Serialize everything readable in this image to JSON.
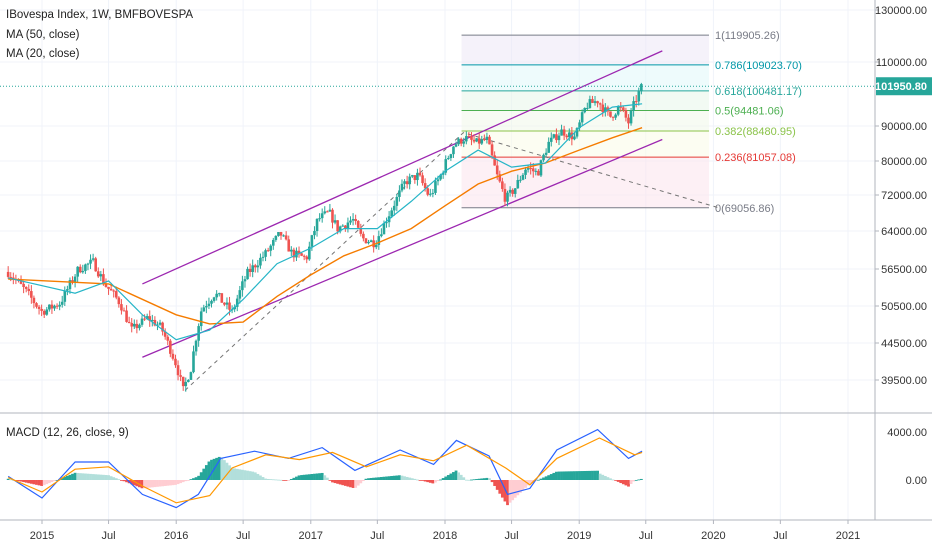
{
  "header": {
    "title": "IBovespa Index, 1W, BMFBOVESPA",
    "ma50": "MA (50, close)",
    "ma20": "MA (20, close)"
  },
  "macd_label": "MACD (12, 26, close, 9)",
  "colors": {
    "up": "#26a69a",
    "down": "#ef5350",
    "ma50": "#f57c00",
    "ma20": "#26b5c7",
    "macd_line": "#2962ff",
    "signal_line": "#ff9800",
    "hist_up_strong": "#26a69a",
    "hist_up_weak": "#b2dfdb",
    "hist_down_strong": "#ef5350",
    "hist_down_weak": "#ffcdd2",
    "channel": "#9c27b0",
    "diagonal": "#757575",
    "last_price": "#26a69a"
  },
  "last_price_badge": "101950.80",
  "chart_data": {
    "type": "candlestick",
    "title": "IBovespa Index, 1W, BMFBOVESPA",
    "ylim": [
      35500,
      133000
    ],
    "y_ticks": [
      "130000.00",
      "110000.00",
      "90000.00",
      "80000.00",
      "72000.00",
      "64000.00",
      "56500.00",
      "50500.00",
      "44500.00",
      "39500.00"
    ],
    "macd_ticks": [
      "4000.00",
      "0.00"
    ],
    "x_ticks": [
      "2015",
      "Jul",
      "2016",
      "Jul",
      "2017",
      "Jul",
      "2018",
      "Jul",
      "2019",
      "Jul",
      "2020",
      "Jul",
      "2021"
    ],
    "price_path": [
      [
        "2014-10-01",
        56000
      ],
      [
        "2014-11-15",
        53000
      ],
      [
        "2015-01-01",
        49500
      ],
      [
        "2015-02-20",
        51000
      ],
      [
        "2015-04-10",
        56500
      ],
      [
        "2015-05-20",
        57800
      ],
      [
        "2015-06-20",
        54000
      ],
      [
        "2015-08-01",
        51000
      ],
      [
        "2015-09-01",
        46500
      ],
      [
        "2015-10-15",
        48500
      ],
      [
        "2015-11-20",
        47000
      ],
      [
        "2016-01-01",
        41500
      ],
      [
        "2016-01-20",
        38200
      ],
      [
        "2016-02-10",
        41000
      ],
      [
        "2016-03-10",
        50000
      ],
      [
        "2016-04-15",
        52500
      ],
      [
        "2016-06-01",
        49500
      ],
      [
        "2016-07-10",
        55500
      ],
      [
        "2016-09-01",
        59500
      ],
      [
        "2016-10-10",
        63500
      ],
      [
        "2016-11-10",
        59500
      ],
      [
        "2016-12-20",
        58500
      ],
      [
        "2017-01-20",
        66500
      ],
      [
        "2017-02-20",
        68000
      ],
      [
        "2017-03-15",
        64500
      ],
      [
        "2017-04-25",
        66500
      ],
      [
        "2017-05-20",
        62500
      ],
      [
        "2017-06-25",
        61500
      ],
      [
        "2017-08-01",
        67500
      ],
      [
        "2017-09-15",
        75000
      ],
      [
        "2017-10-20",
        76500
      ],
      [
        "2017-11-20",
        71500
      ],
      [
        "2017-12-20",
        76500
      ],
      [
        "2018-01-25",
        84500
      ],
      [
        "2018-02-25",
        86500
      ],
      [
        "2018-03-25",
        85000
      ],
      [
        "2018-04-25",
        86000
      ],
      [
        "2018-05-20",
        77000
      ],
      [
        "2018-06-15",
        71000
      ],
      [
        "2018-07-10",
        73500
      ],
      [
        "2018-08-10",
        78500
      ],
      [
        "2018-09-10",
        77000
      ],
      [
        "2018-10-10",
        85000
      ],
      [
        "2018-11-15",
        88500
      ],
      [
        "2018-12-20",
        86500
      ],
      [
        "2019-01-20",
        96000
      ],
      [
        "2019-02-20",
        97500
      ],
      [
        "2019-03-25",
        92500
      ],
      [
        "2019-04-20",
        95500
      ],
      [
        "2019-05-15",
        91000
      ],
      [
        "2019-06-01",
        97000
      ],
      [
        "2019-06-21",
        101950.8
      ]
    ],
    "ma50_path": [
      [
        "2014-10-01",
        54800
      ],
      [
        "2015-07-01",
        54000
      ],
      [
        "2016-01-01",
        49000
      ],
      [
        "2016-04-01",
        47500
      ],
      [
        "2016-07-01",
        47800
      ],
      [
        "2016-10-01",
        52000
      ],
      [
        "2017-01-01",
        55500
      ],
      [
        "2017-04-01",
        59000
      ],
      [
        "2017-07-01",
        61500
      ],
      [
        "2017-10-01",
        64500
      ],
      [
        "2018-01-01",
        69500
      ],
      [
        "2018-04-01",
        74500
      ],
      [
        "2018-07-01",
        77500
      ],
      [
        "2018-10-01",
        79500
      ],
      [
        "2019-01-01",
        83000
      ],
      [
        "2019-04-01",
        86500
      ],
      [
        "2019-06-21",
        89500
      ]
    ],
    "ma20_path": [
      [
        "2014-10-01",
        55000
      ],
      [
        "2015-04-01",
        52500
      ],
      [
        "2015-07-01",
        54500
      ],
      [
        "2015-10-01",
        49000
      ],
      [
        "2016-01-01",
        45000
      ],
      [
        "2016-04-01",
        46500
      ],
      [
        "2016-07-01",
        51500
      ],
      [
        "2016-10-01",
        57500
      ],
      [
        "2017-01-01",
        60500
      ],
      [
        "2017-04-01",
        64500
      ],
      [
        "2017-07-01",
        64500
      ],
      [
        "2017-10-01",
        70500
      ],
      [
        "2018-01-01",
        77500
      ],
      [
        "2018-04-01",
        83000
      ],
      [
        "2018-07-01",
        78500
      ],
      [
        "2018-10-01",
        79500
      ],
      [
        "2019-01-01",
        89500
      ],
      [
        "2019-04-01",
        95500
      ],
      [
        "2019-06-21",
        96500
      ]
    ],
    "macd_path": [
      [
        "2014-10-01",
        300
      ],
      [
        "2015-01-01",
        -1500
      ],
      [
        "2015-04-01",
        1500
      ],
      [
        "2015-07-01",
        1500
      ],
      [
        "2015-10-01",
        -1200
      ],
      [
        "2016-01-01",
        -2300
      ],
      [
        "2016-03-01",
        -1200
      ],
      [
        "2016-05-01",
        1800
      ],
      [
        "2016-08-01",
        2400
      ],
      [
        "2016-11-01",
        1800
      ],
      [
        "2017-02-01",
        2700
      ],
      [
        "2017-05-01",
        800
      ],
      [
        "2017-09-01",
        2500
      ],
      [
        "2017-12-01",
        1300
      ],
      [
        "2018-02-01",
        3300
      ],
      [
        "2018-05-01",
        2000
      ],
      [
        "2018-06-20",
        -1200
      ],
      [
        "2018-08-20",
        -700
      ],
      [
        "2018-11-01",
        2500
      ],
      [
        "2019-02-20",
        4200
      ],
      [
        "2019-05-15",
        1800
      ],
      [
        "2019-06-21",
        2400
      ]
    ],
    "signal_path": [
      [
        "2014-10-01",
        200
      ],
      [
        "2015-01-01",
        -1000
      ],
      [
        "2015-04-01",
        900
      ],
      [
        "2015-07-01",
        1100
      ],
      [
        "2015-10-01",
        -500
      ],
      [
        "2016-01-01",
        -1900
      ],
      [
        "2016-04-01",
        -1300
      ],
      [
        "2016-06-01",
        1000
      ],
      [
        "2016-09-01",
        2100
      ],
      [
        "2016-12-01",
        1700
      ],
      [
        "2017-03-01",
        2300
      ],
      [
        "2017-06-01",
        1100
      ],
      [
        "2017-09-01",
        2100
      ],
      [
        "2017-12-01",
        1600
      ],
      [
        "2018-03-01",
        2900
      ],
      [
        "2018-06-15",
        1000
      ],
      [
        "2018-08-20",
        -400
      ],
      [
        "2018-11-01",
        1800
      ],
      [
        "2019-02-25",
        3500
      ],
      [
        "2019-06-01",
        2100
      ],
      [
        "2019-06-21",
        2300
      ]
    ],
    "fibonacci": [
      {
        "ratio": "1",
        "value": "119905.26",
        "text": "1(119905.26)",
        "color": "#787b86",
        "price": 119905.26
      },
      {
        "ratio": "0.786",
        "value": "109023.70",
        "text": "0.786(109023.70)",
        "color": "#0097a7",
        "price": 109023.7
      },
      {
        "ratio": "0.618",
        "value": "100481.17",
        "text": "0.618(100481.17)",
        "color": "#26a69a",
        "price": 100481.17
      },
      {
        "ratio": "0.5",
        "value": "94481.06",
        "text": "0.5(94481.06)",
        "color": "#4caf50",
        "price": 94481.06
      },
      {
        "ratio": "0.382",
        "value": "88480.95",
        "text": "0.382(88480.95)",
        "color": "#8bc34a",
        "price": 88480.95
      },
      {
        "ratio": "0.236",
        "value": "81057.08",
        "text": "0.236(81057.08)",
        "color": "#e53935",
        "price": 81057.08
      },
      {
        "ratio": "0",
        "value": "69056.86",
        "text": "0(69056.86)",
        "color": "#787b86",
        "price": 69056.86
      }
    ],
    "channel": {
      "upper": [
        [
          "2015-10-01",
          54000
        ],
        [
          "2019-08-15",
          114000
        ]
      ],
      "lower": [
        [
          "2015-10-01",
          42500
        ],
        [
          "2019-08-15",
          86000
        ]
      ]
    },
    "diagonal": [
      [
        "2016-01-25",
        38200
      ],
      [
        "2018-02-20",
        88000
      ],
      [
        "2020-01-15",
        69056.86
      ]
    ]
  }
}
